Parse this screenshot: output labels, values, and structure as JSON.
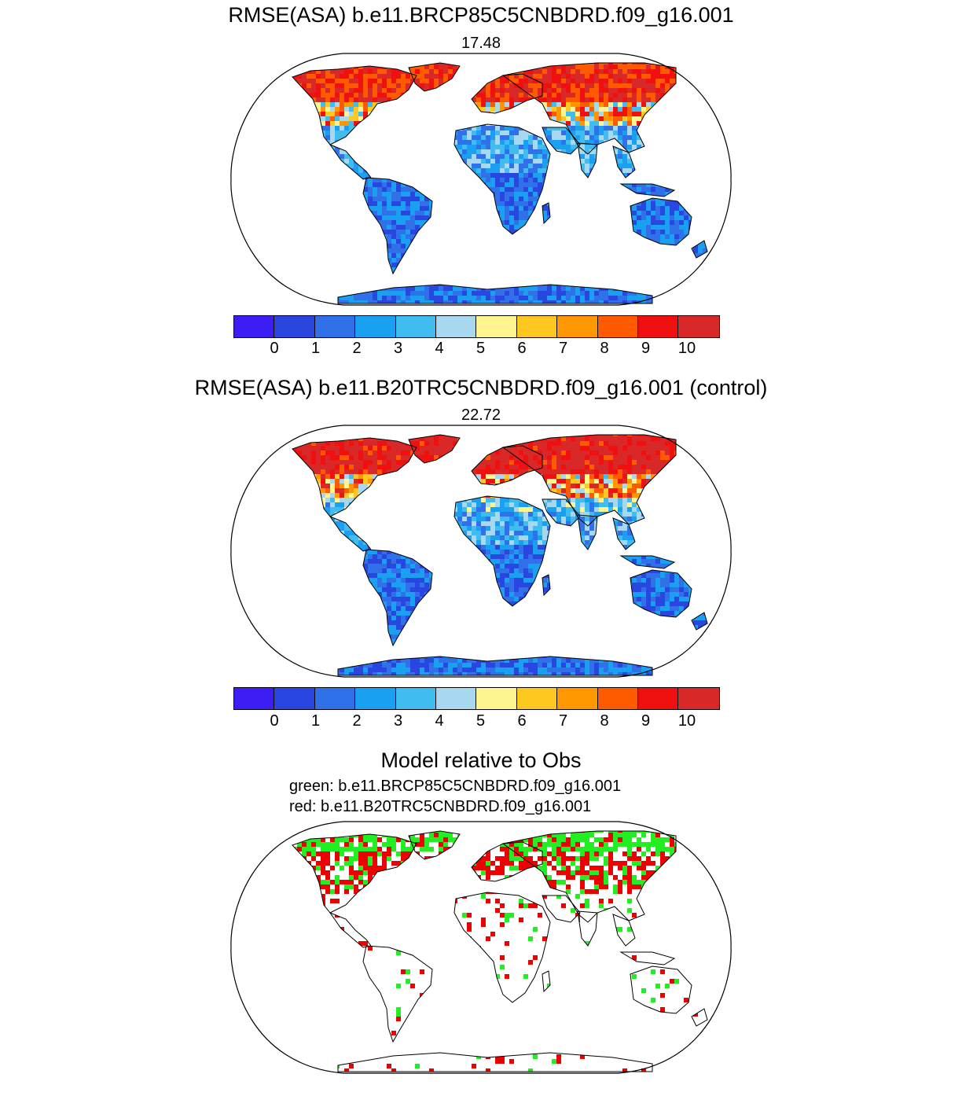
{
  "panel1": {
    "title": "RMSE(ASA) b.e11.BRCP85C5CNBDRD.f09_g16.001",
    "value": "17.48",
    "map_name": "rmse-map-rcp85"
  },
  "panel2": {
    "title": "RMSE(ASA) b.e11.B20TRC5CNBDRD.f09_g16.001 (control)",
    "value": "22.72",
    "map_name": "rmse-map-control"
  },
  "panel3": {
    "title": "Model relative to Obs",
    "legend_green": "green: b.e11.BRCP85C5CNBDRD.f09_g16.001",
    "legend_red": "red: b.e11.B20TRC5CNBDRD.f09_g16.001"
  },
  "colorbar": {
    "colors": [
      "#3c1ef5",
      "#2a46e0",
      "#3070e8",
      "#1aa0f0",
      "#40bcf0",
      "#a8d8f0",
      "#fff590",
      "#ffc820",
      "#ff9800",
      "#ff5a00",
      "#f01010",
      "#d82828"
    ],
    "labels": [
      "0",
      "1",
      "2",
      "3",
      "4",
      "5",
      "6",
      "7",
      "8",
      "9",
      "10"
    ]
  },
  "colors": {
    "green": "#22ee22",
    "red": "#ee0000",
    "ocean": "#ffffff",
    "coast": "#000000"
  }
}
